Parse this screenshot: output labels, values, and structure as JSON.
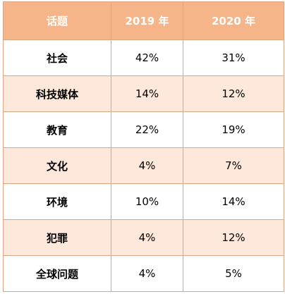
{
  "chart_data": {
    "type": "table",
    "columns": [
      "话题",
      "2019 年",
      "2020 年"
    ],
    "rows": [
      [
        "社会",
        "42%",
        "31%"
      ],
      [
        "科技媒体",
        "14%",
        "12%"
      ],
      [
        "教育",
        "22%",
        "19%"
      ],
      [
        "文化",
        "4%",
        "7%"
      ],
      [
        "环境",
        "10%",
        "14%"
      ],
      [
        "犯罪",
        "4%",
        "12%"
      ],
      [
        "全球问题",
        "4%",
        "5%"
      ]
    ]
  },
  "colors": {
    "header_background": "#f6b588",
    "header_text": "#ffffff",
    "alternate_row_background": "#fde8db",
    "row_background": "#ffffff",
    "border": "#d9a785"
  }
}
